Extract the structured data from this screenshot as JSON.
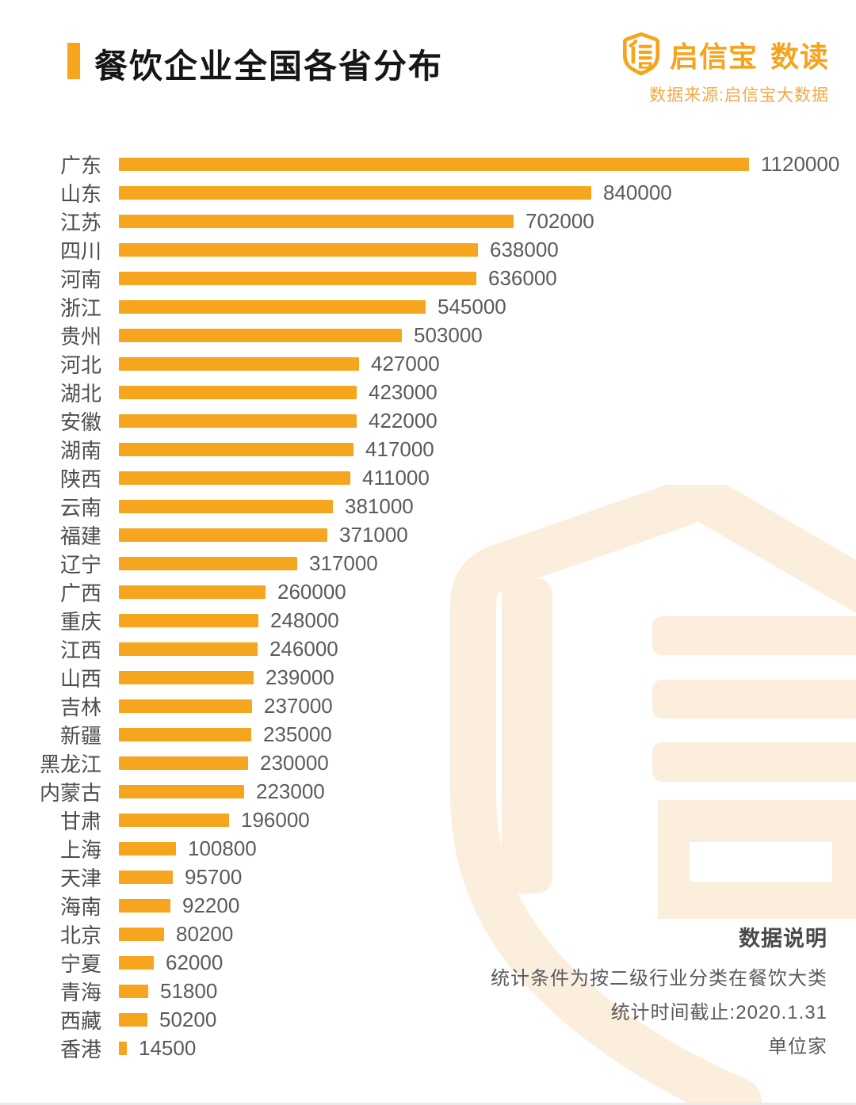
{
  "header": {
    "title": "餐饮企业全国各省分布",
    "brand_name": "启信宝",
    "brand_suffix": "数读",
    "source": "数据来源:启信宝大数据",
    "accent_color": "#F7A51D"
  },
  "chart_data": {
    "type": "bar",
    "orientation": "horizontal",
    "title": "餐饮企业全国各省分布",
    "unit": "家",
    "xlim": [
      0,
      1120000
    ],
    "grid": false,
    "legend": false,
    "bar_color": "#F6A51E",
    "value_labels": true,
    "categories": [
      "广东",
      "山东",
      "江苏",
      "四川",
      "河南",
      "浙江",
      "贵州",
      "河北",
      "湖北",
      "安徽",
      "湖南",
      "陕西",
      "云南",
      "福建",
      "辽宁",
      "广西",
      "重庆",
      "江西",
      "山西",
      "吉林",
      "新疆",
      "黑龙江",
      "内蒙古",
      "甘肃",
      "上海",
      "天津",
      "海南",
      "北京",
      "宁夏",
      "青海",
      "西藏",
      "香港"
    ],
    "values": [
      1120000,
      840000,
      702000,
      638000,
      636000,
      545000,
      503000,
      427000,
      423000,
      422000,
      417000,
      411000,
      381000,
      371000,
      317000,
      260000,
      248000,
      246000,
      239000,
      237000,
      235000,
      230000,
      223000,
      196000,
      100800,
      95700,
      92200,
      80200,
      62000,
      51800,
      50200,
      14500
    ]
  },
  "notes": {
    "title": "数据说明",
    "line1": "统计条件为按二级行业分类在餐饮大类",
    "line2": "统计时间截止:2020.1.31",
    "line3": "单位家"
  },
  "watermark": {
    "icon": "qixinbao-shield",
    "color": "#FBEEDC"
  }
}
